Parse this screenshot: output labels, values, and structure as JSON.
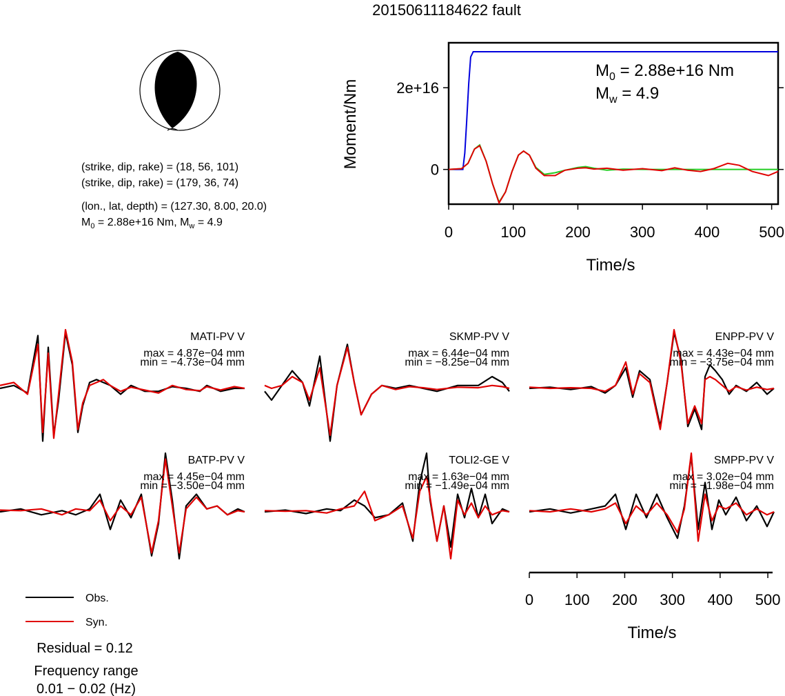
{
  "title": "20150611184622 fault",
  "mechanism": {
    "line1": "(strike, dip, rake) = (18, 56, 101)",
    "line2": "(strike, dip, rake) = (179, 36, 74)",
    "line3": "(lon., lat, depth) = (127.30, 8.00, 20.0)",
    "m0_prefix": "M",
    "m0_sub": "0",
    "m0_rest": " = 2.88e+16 Nm, M",
    "mw_sub": "w",
    "mw_rest": " = 4.9"
  },
  "moment_panel": {
    "ylabel": "Moment/Nm",
    "xlabel": "Time/s",
    "annot_m0_prefix": "M",
    "annot_m0_sub": "0",
    "annot_m0_rest": " = 2.88e+16 Nm",
    "annot_mw_prefix": "M",
    "annot_mw_sub": "w",
    "annot_mw_rest": " = 4.9"
  },
  "legend": {
    "obs": "Obs.",
    "syn": "Syn.",
    "residual": "Residual = 0.12",
    "freq_title": "Frequency range",
    "freq_value": "0.01 − 0.02 (Hz)"
  },
  "time_axis": {
    "xlabel": "Time/s"
  },
  "colors": {
    "obs": "#000000",
    "syn": "#e00000",
    "moment": "#0000dd",
    "stf": "#22cc22"
  },
  "chart_data": [
    {
      "type": "line",
      "title": "",
      "xlabel": "Time/s",
      "ylabel": "Moment/Nm",
      "xlim": [
        0,
        510
      ],
      "ylim": [
        -8500000000000000.0,
        3.1e+16
      ],
      "xticks": [
        "0",
        "100",
        "200",
        "300",
        "400",
        "500"
      ],
      "yticks": [
        "0",
        "2e+16"
      ],
      "series": [
        {
          "name": "",
          "color": "#0000dd",
          "x": [
            0,
            22,
            25,
            28,
            31,
            34,
            38,
            510
          ],
          "y": [
            0,
            0,
            4000000000000000.0,
            1.2e+16,
            2.1e+16,
            2.75e+16,
            2.88e+16,
            2.88e+16
          ]
        },
        {
          "name": "",
          "color": "#22cc22",
          "x": [
            0,
            20,
            30,
            40,
            48,
            58,
            68,
            78,
            88,
            98,
            108,
            116,
            125,
            135,
            148,
            165,
            180,
            200,
            212,
            225,
            245,
            270,
            300,
            330,
            360,
            400,
            450,
            510
          ],
          "y": [
            0,
            200000000000000.0,
            1500000000000000.0,
            5000000000000000.0,
            6000000000000000.0,
            2000000000000000.0,
            -3500000000000000.0,
            -8000000000000000.0,
            -5500000000000000.0,
            -500000000000000.0,
            3500000000000000.0,
            4500000000000000.0,
            3500000000000000.0,
            500000000000000.0,
            -1200000000000000.0,
            -800000000000000.0,
            -200000000000000.0,
            500000000000000.0,
            700000000000000.0,
            300000000000000.0,
            -200000000000000.0,
            100000000000000.0,
            0,
            0,
            0,
            0,
            0,
            0
          ]
        },
        {
          "name": "",
          "color": "#e00000",
          "x": [
            0,
            20,
            30,
            40,
            48,
            58,
            68,
            78,
            88,
            98,
            108,
            116,
            125,
            135,
            148,
            165,
            180,
            200,
            212,
            225,
            245,
            270,
            300,
            330,
            350,
            370,
            390,
            410,
            432,
            450,
            470,
            495,
            510
          ],
          "y": [
            0,
            200000000000000.0,
            1500000000000000.0,
            5000000000000000.0,
            5800000000000000.0,
            2000000000000000.0,
            -3500000000000000.0,
            -8200000000000000.0,
            -5500000000000000.0,
            -500000000000000.0,
            3500000000000000.0,
            4500000000000000.0,
            3500000000000000.0,
            300000000000000.0,
            -1500000000000000.0,
            -1500000000000000.0,
            -200000000000000.0,
            300000000000000.0,
            400000000000000.0,
            100000000000000.0,
            300000000000000.0,
            -200000000000000.0,
            200000000000000.0,
            -300000000000000.0,
            400000000000000.0,
            -200000000000000.0,
            -500000000000000.0,
            200000000000000.0,
            1500000000000000.0,
            1000000000000000.0,
            -500000000000000.0,
            -1500000000000000.0,
            -500000000000000.0
          ]
        }
      ]
    },
    {
      "type": "line",
      "title": "MATI-PV V",
      "max_label": "max = 4.87e−04 mm",
      "min_label": "min = −4.73e−04 mm",
      "ylim": [
        -1,
        1
      ],
      "series": [
        {
          "name": "Obs.",
          "x": [
            0,
            20,
            40,
            55,
            62,
            70,
            78,
            85,
            95,
            105,
            113,
            120,
            130,
            140,
            150,
            160,
            175,
            190,
            210,
            230,
            250,
            270,
            290,
            300,
            320,
            340,
            355
          ],
          "y": [
            0,
            0.05,
            -0.08,
            0.9,
            -0.9,
            0.7,
            -0.8,
            -0.2,
            0.95,
            0.4,
            -0.75,
            -0.3,
            0.1,
            0.15,
            0.1,
            0.05,
            -0.1,
            0.05,
            -0.05,
            -0.05,
            0.03,
            0,
            -0.05,
            0.05,
            -0.05,
            0,
            0
          ]
        },
        {
          "name": "Syn.",
          "x": [
            0,
            20,
            40,
            55,
            62,
            70,
            78,
            85,
            95,
            105,
            113,
            120,
            130,
            140,
            150,
            160,
            175,
            190,
            210,
            230,
            250,
            270,
            290,
            300,
            320,
            340,
            355
          ],
          "y": [
            0.05,
            0.1,
            -0.1,
            0.75,
            -0.75,
            0.6,
            -0.85,
            -0.1,
            1.0,
            0.45,
            -0.7,
            -0.25,
            0.05,
            0.1,
            0.15,
            0.05,
            -0.05,
            0.02,
            -0.03,
            -0.08,
            0.05,
            -0.02,
            -0.04,
            0.03,
            -0.03,
            0.03,
            0
          ]
        }
      ]
    },
    {
      "type": "line",
      "title": "SKMP-PV V",
      "max_label": "max = 6.44e−04 mm",
      "min_label": "min = −8.25e−04 mm",
      "ylim": [
        -1,
        1
      ],
      "series": [
        {
          "name": "Obs.",
          "x": [
            0,
            10,
            25,
            40,
            55,
            65,
            80,
            95,
            105,
            120,
            130,
            140,
            155,
            170,
            190,
            210,
            230,
            250,
            280,
            310,
            330,
            345,
            355
          ],
          "y": [
            -0.05,
            -0.2,
            0.05,
            0.3,
            0.1,
            -0.3,
            0.55,
            -0.9,
            0.05,
            0.75,
            0.1,
            -0.45,
            -0.1,
            0.05,
            0,
            0.05,
            0,
            -0.05,
            0.05,
            0.05,
            0.2,
            0.1,
            -0.05
          ]
        },
        {
          "name": "Syn.",
          "x": [
            0,
            10,
            25,
            40,
            55,
            65,
            80,
            95,
            105,
            120,
            130,
            140,
            155,
            170,
            190,
            210,
            230,
            250,
            280,
            310,
            330,
            345,
            355
          ],
          "y": [
            0.05,
            0,
            0.05,
            0.2,
            0.1,
            -0.2,
            0.35,
            -0.8,
            0.05,
            0.7,
            0.1,
            -0.45,
            -0.1,
            0.05,
            -0.02,
            0.03,
            0.01,
            -0.02,
            0.02,
            0.01,
            0.05,
            0.03,
            0
          ]
        }
      ]
    },
    {
      "type": "line",
      "title": "ENPP-PV V",
      "max_label": "max = 4.43e−04 mm",
      "min_label": "min = −3.75e−04 mm",
      "ylim": [
        -1,
        1
      ],
      "series": [
        {
          "name": "Obs.",
          "x": [
            0,
            30,
            60,
            90,
            110,
            125,
            140,
            150,
            160,
            175,
            190,
            200,
            210,
            220,
            230,
            240,
            250,
            255,
            262,
            270,
            280,
            290,
            300,
            315,
            330,
            345,
            355
          ],
          "y": [
            0,
            0.02,
            -0.02,
            0.03,
            -0.08,
            0.05,
            0.35,
            -0.15,
            0.3,
            0.15,
            -0.65,
            0.1,
            0.95,
            0.5,
            -0.65,
            -0.35,
            -0.7,
            0.2,
            0.4,
            0.3,
            0.15,
            -0.1,
            0.05,
            -0.05,
            0.1,
            -0.1,
            0
          ]
        },
        {
          "name": "Syn.",
          "x": [
            0,
            30,
            60,
            90,
            110,
            125,
            140,
            150,
            160,
            175,
            190,
            200,
            210,
            220,
            230,
            240,
            250,
            255,
            262,
            270,
            280,
            290,
            300,
            315,
            330,
            345,
            355
          ],
          "y": [
            0.02,
            0,
            0.01,
            0,
            -0.05,
            0.05,
            0.45,
            -0.1,
            0.25,
            0.1,
            -0.7,
            0.1,
            1.0,
            0.45,
            -0.6,
            -0.3,
            -0.6,
            0.15,
            0.2,
            0.15,
            0.05,
            -0.05,
            0.03,
            -0.03,
            0.02,
            -0.02,
            0
          ]
        }
      ]
    },
    {
      "type": "line",
      "title": "BATP-PV V",
      "max_label": "max = 4.45e−04 mm",
      "min_label": "min = −3.50e−04 mm",
      "ylim": [
        -1,
        1
      ],
      "series": [
        {
          "name": "Obs.",
          "x": [
            0,
            30,
            60,
            90,
            110,
            130,
            145,
            160,
            175,
            190,
            205,
            220,
            230,
            240,
            250,
            260,
            270,
            285,
            300,
            315,
            330,
            345,
            355
          ],
          "y": [
            0,
            0.05,
            -0.05,
            0.02,
            -0.05,
            0.05,
            0.3,
            -0.3,
            0.2,
            -0.1,
            0.3,
            -0.75,
            -0.2,
            1.0,
            0.2,
            -0.8,
            0.1,
            0.3,
            0.05,
            0.1,
            -0.05,
            0.05,
            0
          ]
        },
        {
          "name": "Syn.",
          "x": [
            0,
            30,
            60,
            90,
            110,
            130,
            145,
            160,
            175,
            190,
            205,
            220,
            230,
            240,
            250,
            260,
            270,
            285,
            300,
            315,
            330,
            345,
            355
          ],
          "y": [
            0.03,
            0.02,
            0.05,
            -0.05,
            0.05,
            0.02,
            0.2,
            -0.15,
            0.1,
            -0.05,
            0.25,
            -0.7,
            -0.15,
            0.9,
            0.1,
            -0.7,
            0.05,
            0.25,
            0.05,
            0.1,
            -0.05,
            0.02,
            0
          ]
        }
      ]
    },
    {
      "type": "line",
      "title": "TOLI2-GE V",
      "max_label": "max = 1.63e−04 mm",
      "min_label": "min = −1.49e−04 mm",
      "ylim": [
        -1,
        1
      ],
      "series": [
        {
          "name": "Obs.",
          "x": [
            0,
            30,
            60,
            90,
            110,
            130,
            145,
            160,
            180,
            200,
            215,
            225,
            235,
            240,
            250,
            260,
            270,
            280,
            290,
            300,
            310,
            320,
            330,
            345,
            355
          ],
          "y": [
            0,
            0.03,
            -0.03,
            0.05,
            0.02,
            0.2,
            0.1,
            -0.1,
            -0.05,
            0.15,
            -0.5,
            0.5,
            1.0,
            0.2,
            -0.5,
            0.1,
            -0.6,
            0.3,
            -0.1,
            0.4,
            -0.1,
            0.3,
            -0.2,
            0.05,
            0
          ]
        },
        {
          "name": "Syn.",
          "x": [
            0,
            30,
            60,
            90,
            110,
            130,
            145,
            160,
            180,
            200,
            215,
            225,
            235,
            240,
            250,
            260,
            270,
            280,
            290,
            300,
            310,
            320,
            330,
            345,
            355
          ],
          "y": [
            0.02,
            0.01,
            0.02,
            -0.02,
            0.05,
            0.1,
            0.35,
            -0.15,
            -0.05,
            0.1,
            -0.45,
            0.35,
            0.6,
            0.25,
            -0.5,
            0.1,
            -0.8,
            0.2,
            -0.05,
            0.15,
            -0.1,
            0.1,
            -0.05,
            0.02,
            0
          ]
        }
      ]
    },
    {
      "type": "line",
      "title": "SMPP-PV V",
      "max_label": "max = 3.02e−04 mm",
      "min_label": "min = −1.98e−04 mm",
      "ylim": [
        -1,
        1
      ],
      "series": [
        {
          "name": "Obs.",
          "x": [
            0,
            30,
            60,
            90,
            110,
            125,
            140,
            155,
            170,
            185,
            200,
            215,
            225,
            235,
            245,
            255,
            265,
            275,
            285,
            300,
            315,
            330,
            345,
            355
          ],
          "y": [
            0,
            0.05,
            -0.02,
            0.05,
            0.1,
            0.3,
            -0.3,
            0.3,
            -0.1,
            0.3,
            -0.1,
            -0.45,
            0.1,
            0.95,
            -0.3,
            0.5,
            -0.3,
            0.2,
            -0.05,
            0.25,
            -0.15,
            0.1,
            -0.25,
            0
          ]
        },
        {
          "name": "Syn.",
          "x": [
            0,
            30,
            60,
            90,
            110,
            125,
            140,
            155,
            170,
            185,
            200,
            215,
            225,
            235,
            245,
            255,
            265,
            275,
            285,
            300,
            315,
            330,
            345,
            355
          ],
          "y": [
            0.02,
            0,
            0.05,
            0,
            0.05,
            0.15,
            -0.2,
            0.1,
            -0.05,
            0.15,
            -0.05,
            -0.35,
            0.05,
            1.0,
            -0.5,
            0.3,
            -0.15,
            0.1,
            0.05,
            0.15,
            -0.05,
            0.05,
            -0.05,
            0
          ]
        }
      ]
    }
  ]
}
